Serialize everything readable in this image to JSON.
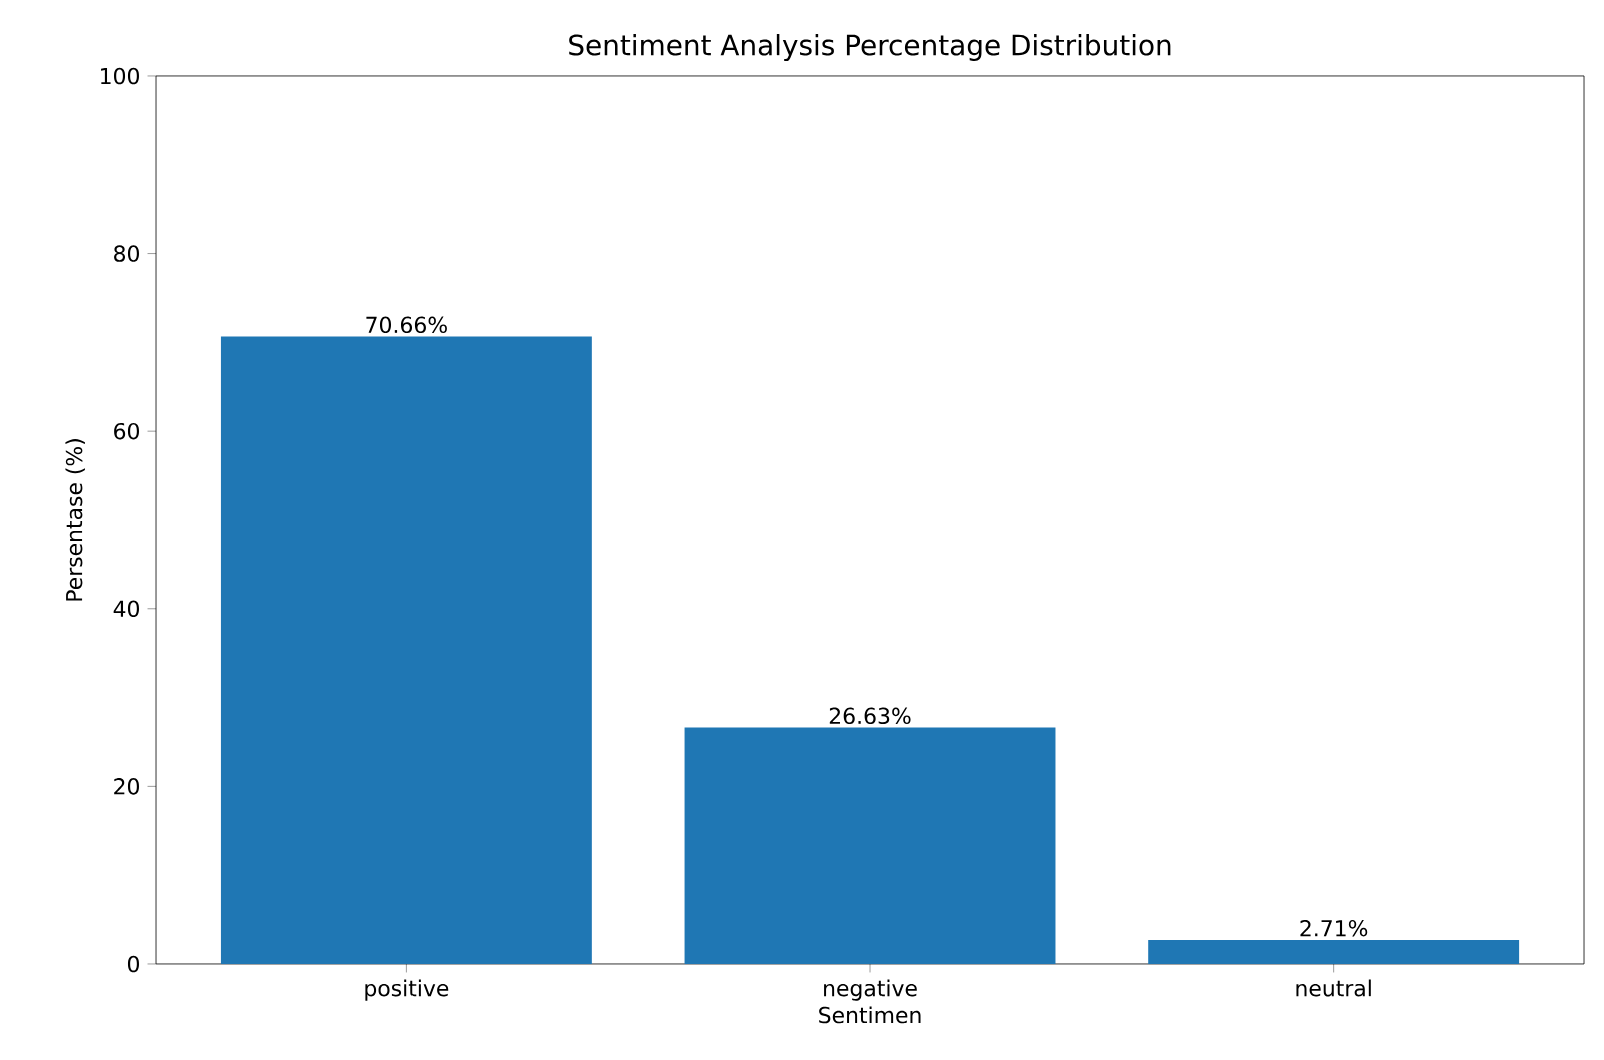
{
  "chart_data": {
    "type": "bar",
    "title": "Sentiment Analysis Percentage Distribution",
    "xlabel": "Sentimen",
    "ylabel": "Persentase (%)",
    "categories": [
      "positive",
      "negative",
      "neutral"
    ],
    "values": [
      70.66,
      26.63,
      2.71
    ],
    "value_labels": [
      "70.66%",
      "26.63%",
      "2.71%"
    ],
    "color": "#1f77b4",
    "ylim": [
      0,
      100
    ],
    "yticks": [
      0,
      20,
      40,
      60,
      80,
      100
    ],
    "grid": false
  }
}
